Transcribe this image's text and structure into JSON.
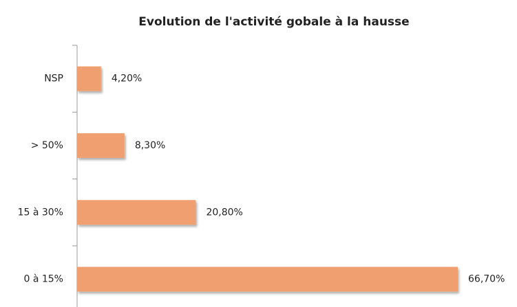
{
  "chart_data": {
    "type": "bar",
    "orientation": "horizontal",
    "title": "Evolution de l'activité gobale à la hausse",
    "categories": [
      "NSP",
      "> 50%",
      "15 à 30%",
      "0 à 15%"
    ],
    "values": [
      4.2,
      8.3,
      20.8,
      66.7
    ],
    "value_labels": [
      "4,20%",
      "8,30%",
      "20,80%",
      "66,70%"
    ],
    "color": "#f0a070"
  }
}
